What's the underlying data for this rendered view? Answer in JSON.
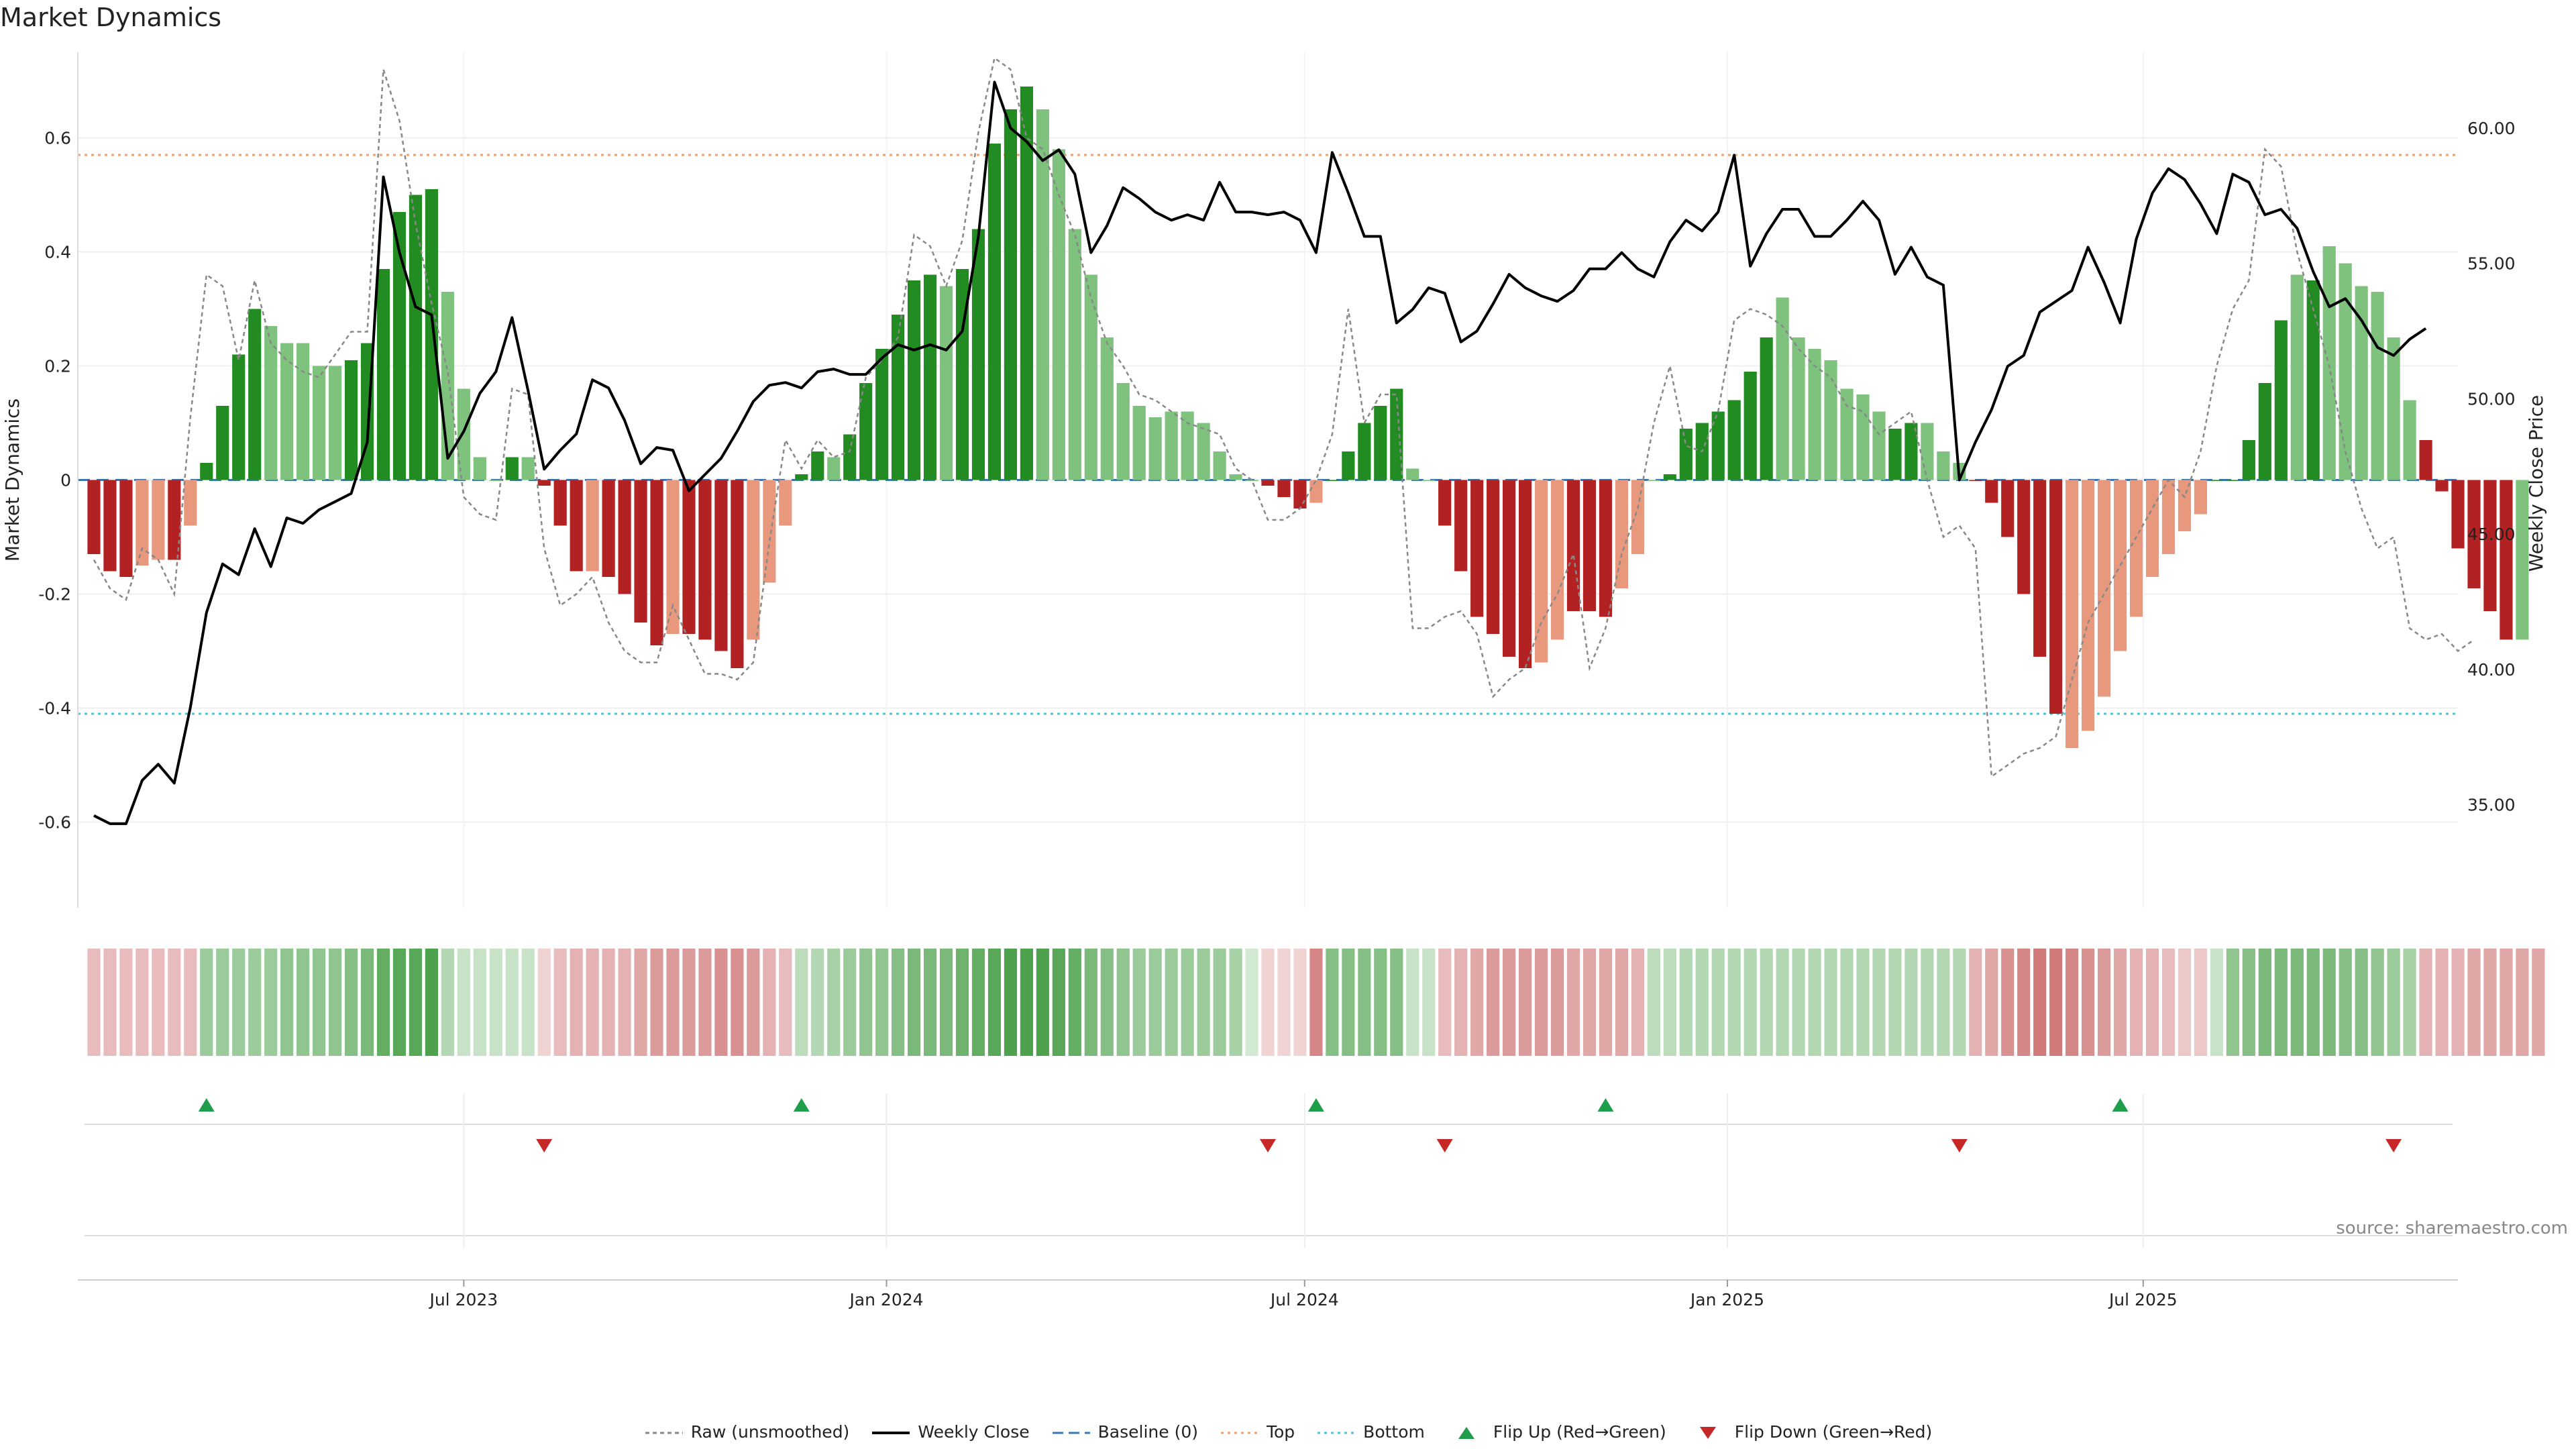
{
  "title": "Market Dynamics",
  "source": "source: sharemaestro.com",
  "colors": {
    "green_strong": "#228b22",
    "green_light": "#7ec27e",
    "red_strong": "#b22222",
    "red_light": "#e8997d",
    "price_line": "#000000",
    "raw_line": "#888888",
    "baseline": "#3b75af",
    "top_line": "#f0a070",
    "bottom_line": "#4fc3d9",
    "flip_up": "#1e9e4a",
    "flip_down": "#c62828"
  },
  "legend": [
    {
      "label": "Raw (unsmoothed)",
      "style": "raw"
    },
    {
      "label": "Weekly Close",
      "style": "price"
    },
    {
      "label": "Baseline (0)",
      "style": "baseline"
    },
    {
      "label": "Top",
      "style": "top"
    },
    {
      "label": "Bottom",
      "style": "bottom"
    },
    {
      "label": "Flip Up (Red→Green)",
      "style": "flip-up"
    },
    {
      "label": "Flip Down (Green→Red)",
      "style": "flip-down"
    }
  ],
  "chart_data": {
    "type": "bar",
    "title": "Market Dynamics",
    "ylabel": "Market Dynamics",
    "y2label": "Weekly Close Price",
    "ylim": [
      -0.75,
      0.75
    ],
    "y2lim": [
      31.2,
      62.8
    ],
    "yticks": [
      -0.6,
      -0.4,
      -0.2,
      0,
      0.2,
      0.4,
      0.6
    ],
    "ytick_labels": [
      "-0.6",
      "-0.4",
      "-0.2",
      "0",
      "0.2",
      "0.4",
      "0.6"
    ],
    "y2ticks": [
      35,
      40,
      45,
      50,
      55,
      60
    ],
    "y2tick_labels": [
      "35.00",
      "40.00",
      "45.00",
      "50.00",
      "55.00",
      "60.00"
    ],
    "top_level": 0.57,
    "bottom_level": -0.41,
    "xlim": [
      "2023-01-14",
      "2025-11-15"
    ],
    "xticks": [
      "2023-07-01",
      "2024-01-01",
      "2024-07-01",
      "2025-01-01",
      "2025-07-01"
    ],
    "xtick_labels": [
      "Jul 2023",
      "Jan 2024",
      "Jul 2024",
      "Jan 2025",
      "Jul 2025"
    ],
    "x_start": "2023-01-21",
    "x_step_days": 7,
    "values": [
      -0.13,
      -0.16,
      -0.17,
      -0.15,
      -0.14,
      -0.14,
      -0.08,
      0.03,
      0.13,
      0.22,
      0.3,
      0.27,
      0.24,
      0.24,
      0.2,
      0.2,
      0.21,
      0.24,
      0.37,
      0.47,
      0.5,
      0.51,
      0.33,
      0.16,
      0.04,
      0.0,
      0.04,
      0.04,
      -0.01,
      -0.08,
      -0.16,
      -0.16,
      -0.17,
      -0.2,
      -0.25,
      -0.29,
      -0.27,
      -0.27,
      -0.28,
      -0.3,
      -0.33,
      -0.28,
      -0.18,
      -0.08,
      0.01,
      0.05,
      0.04,
      0.08,
      0.17,
      0.23,
      0.29,
      0.35,
      0.36,
      0.34,
      0.37,
      0.44,
      0.59,
      0.65,
      0.69,
      0.65,
      0.58,
      0.44,
      0.36,
      0.25,
      0.17,
      0.13,
      0.11,
      0.12,
      0.12,
      0.1,
      0.05,
      0.01,
      0.0,
      -0.01,
      -0.03,
      -0.05,
      -0.04,
      0.0,
      0.05,
      0.1,
      0.13,
      0.16,
      0.02,
      0.0,
      -0.08,
      -0.16,
      -0.24,
      -0.27,
      -0.31,
      -0.33,
      -0.32,
      -0.28,
      -0.23,
      -0.23,
      -0.24,
      -0.19,
      -0.13,
      0.0,
      0.01,
      0.09,
      0.1,
      0.12,
      0.14,
      0.19,
      0.25,
      0.32,
      0.25,
      0.23,
      0.21,
      0.16,
      0.15,
      0.12,
      0.09,
      0.1,
      0.1,
      0.05,
      0.03,
      0.0,
      -0.04,
      -0.1,
      -0.2,
      -0.31,
      -0.41,
      -0.47,
      -0.44,
      -0.38,
      -0.3,
      -0.24,
      -0.17,
      -0.13,
      -0.09,
      -0.06,
      0.0,
      0.0,
      0.07,
      0.17,
      0.28,
      0.36,
      0.35,
      0.41,
      0.38,
      0.34,
      0.33,
      0.25,
      0.14,
      0.07,
      -0.02,
      -0.12,
      -0.19,
      -0.23,
      -0.28,
      -0.28
    ],
    "colors": [
      "r",
      "r",
      "r",
      "rl",
      "rl",
      "r",
      "rl",
      "g",
      "g",
      "g",
      "g",
      "gl",
      "gl",
      "gl",
      "gl",
      "gl",
      "g",
      "g",
      "g",
      "g",
      "g",
      "g",
      "gl",
      "gl",
      "gl",
      "gl",
      "g",
      "gl",
      "r",
      "r",
      "r",
      "rl",
      "r",
      "r",
      "r",
      "r",
      "rl",
      "r",
      "r",
      "r",
      "r",
      "rl",
      "rl",
      "rl",
      "g",
      "g",
      "gl",
      "g",
      "g",
      "g",
      "g",
      "g",
      "g",
      "gl",
      "g",
      "g",
      "g",
      "g",
      "g",
      "gl",
      "gl",
      "gl",
      "gl",
      "gl",
      "gl",
      "gl",
      "gl",
      "gl",
      "gl",
      "gl",
      "gl",
      "gl",
      "gl",
      "r",
      "r",
      "r",
      "rl",
      "g",
      "g",
      "g",
      "g",
      "g",
      "gl",
      "gl",
      "r",
      "r",
      "r",
      "r",
      "r",
      "r",
      "rl",
      "rl",
      "r",
      "r",
      "r",
      "rl",
      "rl",
      "gl",
      "g",
      "g",
      "g",
      "g",
      "g",
      "g",
      "g",
      "gl",
      "gl",
      "gl",
      "gl",
      "gl",
      "gl",
      "gl",
      "g",
      "g",
      "gl",
      "gl",
      "gl",
      "r",
      "r",
      "r",
      "r",
      "r",
      "r",
      "rl",
      "rl",
      "rl",
      "rl",
      "rl",
      "rl",
      "rl",
      "rl",
      "rl",
      "g",
      "g",
      "g",
      "g",
      "g",
      "gl",
      "g",
      "gl",
      "gl",
      "gl",
      "gl",
      "gl",
      "gl",
      "r",
      "r",
      "r",
      "r",
      "r",
      "r"
    ],
    "raw": [
      -0.14,
      -0.19,
      -0.21,
      -0.12,
      -0.14,
      -0.2,
      0.11,
      0.36,
      0.34,
      0.21,
      0.35,
      0.24,
      0.21,
      0.19,
      0.18,
      0.22,
      0.26,
      0.26,
      0.72,
      0.63,
      0.45,
      0.31,
      0.19,
      -0.03,
      -0.06,
      -0.07,
      0.16,
      0.15,
      -0.12,
      -0.22,
      -0.2,
      -0.17,
      -0.25,
      -0.3,
      -0.32,
      -0.32,
      -0.22,
      -0.28,
      -0.34,
      -0.34,
      -0.35,
      -0.32,
      -0.11,
      0.07,
      0.02,
      0.07,
      0.04,
      0.05,
      0.18,
      0.21,
      0.25,
      0.43,
      0.41,
      0.34,
      0.42,
      0.61,
      0.74,
      0.72,
      0.6,
      0.58,
      0.5,
      0.43,
      0.32,
      0.24,
      0.2,
      0.15,
      0.14,
      0.12,
      0.1,
      0.09,
      0.08,
      0.02,
      0.0,
      -0.07,
      -0.07,
      -0.05,
      0.0,
      0.08,
      0.3,
      0.1,
      0.15,
      0.15,
      -0.26,
      -0.26,
      -0.24,
      -0.23,
      -0.27,
      -0.38,
      -0.35,
      -0.33,
      -0.25,
      -0.2,
      -0.13,
      -0.33,
      -0.26,
      -0.13,
      -0.05,
      0.1,
      0.2,
      0.06,
      0.05,
      0.12,
      0.28,
      0.3,
      0.29,
      0.27,
      0.23,
      0.2,
      0.18,
      0.13,
      0.12,
      0.08,
      0.1,
      0.12,
      0.0,
      -0.1,
      -0.08,
      -0.12,
      -0.52,
      -0.5,
      -0.48,
      -0.47,
      -0.45,
      -0.35,
      -0.25,
      -0.2,
      -0.15,
      -0.1,
      -0.05,
      0.0,
      -0.03,
      0.05,
      0.2,
      0.3,
      0.35,
      0.58,
      0.55,
      0.4,
      0.3,
      0.2,
      0.05,
      -0.05,
      -0.12,
      -0.1,
      -0.26,
      -0.28,
      -0.27,
      -0.3,
      -0.28
    ],
    "price": [
      34.6,
      34.3,
      34.3,
      35.9,
      36.5,
      35.8,
      38.6,
      42.1,
      43.9,
      43.5,
      45.2,
      43.8,
      45.6,
      45.4,
      45.9,
      46.2,
      46.5,
      48.4,
      58.2,
      55.4,
      53.4,
      53.1,
      47.8,
      48.8,
      50.2,
      51.0,
      53.0,
      50.3,
      47.4,
      48.1,
      48.7,
      50.7,
      50.4,
      49.2,
      47.6,
      48.2,
      48.1,
      46.6,
      47.2,
      47.8,
      48.8,
      49.9,
      50.5,
      50.6,
      50.4,
      51.0,
      51.1,
      50.9,
      50.9,
      51.5,
      52.0,
      51.8,
      52.0,
      51.8,
      52.5,
      56.0,
      61.7,
      60.0,
      59.5,
      58.8,
      59.2,
      58.3,
      55.4,
      56.4,
      57.8,
      57.4,
      56.9,
      56.6,
      56.8,
      56.6,
      58.0,
      56.9,
      56.9,
      56.8,
      56.9,
      56.6,
      55.4,
      59.1,
      57.6,
      56.0,
      56.0,
      52.8,
      53.3,
      54.1,
      53.9,
      52.1,
      52.5,
      53.5,
      54.6,
      54.1,
      53.8,
      53.6,
      54.0,
      54.8,
      54.8,
      55.4,
      54.8,
      54.5,
      55.8,
      56.6,
      56.2,
      56.9,
      59.0,
      54.9,
      56.1,
      57.0,
      57.0,
      56.0,
      56.0,
      56.6,
      57.3,
      56.6,
      54.6,
      55.6,
      54.5,
      54.2,
      47.0,
      48.4,
      49.6,
      51.2,
      51.6,
      53.2,
      53.6,
      54.0,
      55.6,
      54.3,
      52.8,
      55.9,
      57.6,
      58.5,
      58.1,
      57.2,
      56.1,
      58.3,
      58.0,
      56.8,
      57.0,
      56.3,
      54.7,
      53.4,
      53.7,
      52.9,
      51.9,
      51.6,
      52.2,
      52.6
    ],
    "strip_alpha": [
      0.3,
      0.3,
      0.3,
      0.3,
      0.3,
      0.3,
      0.3,
      0.45,
      0.45,
      0.45,
      0.45,
      0.45,
      0.5,
      0.5,
      0.5,
      0.5,
      0.55,
      0.6,
      0.7,
      0.75,
      0.75,
      0.8,
      0.35,
      0.25,
      0.25,
      0.25,
      0.25,
      0.25,
      0.2,
      0.3,
      0.35,
      0.35,
      0.35,
      0.35,
      0.4,
      0.45,
      0.45,
      0.45,
      0.45,
      0.5,
      0.5,
      0.45,
      0.35,
      0.3,
      0.3,
      0.35,
      0.4,
      0.45,
      0.5,
      0.5,
      0.55,
      0.6,
      0.6,
      0.6,
      0.65,
      0.7,
      0.75,
      0.8,
      0.8,
      0.8,
      0.75,
      0.7,
      0.6,
      0.55,
      0.5,
      0.45,
      0.45,
      0.45,
      0.45,
      0.45,
      0.45,
      0.4,
      0.2,
      0.2,
      0.2,
      0.2,
      0.55,
      0.55,
      0.55,
      0.55,
      0.55,
      0.55,
      0.25,
      0.25,
      0.3,
      0.35,
      0.4,
      0.45,
      0.45,
      0.45,
      0.45,
      0.45,
      0.4,
      0.4,
      0.4,
      0.4,
      0.35,
      0.3,
      0.3,
      0.35,
      0.35,
      0.35,
      0.35,
      0.35,
      0.35,
      0.35,
      0.35,
      0.35,
      0.35,
      0.35,
      0.35,
      0.35,
      0.35,
      0.35,
      0.35,
      0.35,
      0.35,
      0.35,
      0.4,
      0.5,
      0.55,
      0.6,
      0.6,
      0.55,
      0.5,
      0.45,
      0.4,
      0.35,
      0.35,
      0.3,
      0.25,
      0.25,
      0.25,
      0.5,
      0.55,
      0.6,
      0.6,
      0.6,
      0.6,
      0.6,
      0.55,
      0.55,
      0.5,
      0.45,
      0.4,
      0.35,
      0.35,
      0.35,
      0.4,
      0.4,
      0.4,
      0.4,
      0.4
    ],
    "flip_up_dates": [
      "2023-03-11",
      "2023-11-25",
      "2024-07-06",
      "2024-11-09",
      "2025-06-21"
    ],
    "flip_down_dates": [
      "2023-08-05",
      "2024-06-15",
      "2024-08-31",
      "2025-04-12",
      "2025-10-18"
    ]
  }
}
